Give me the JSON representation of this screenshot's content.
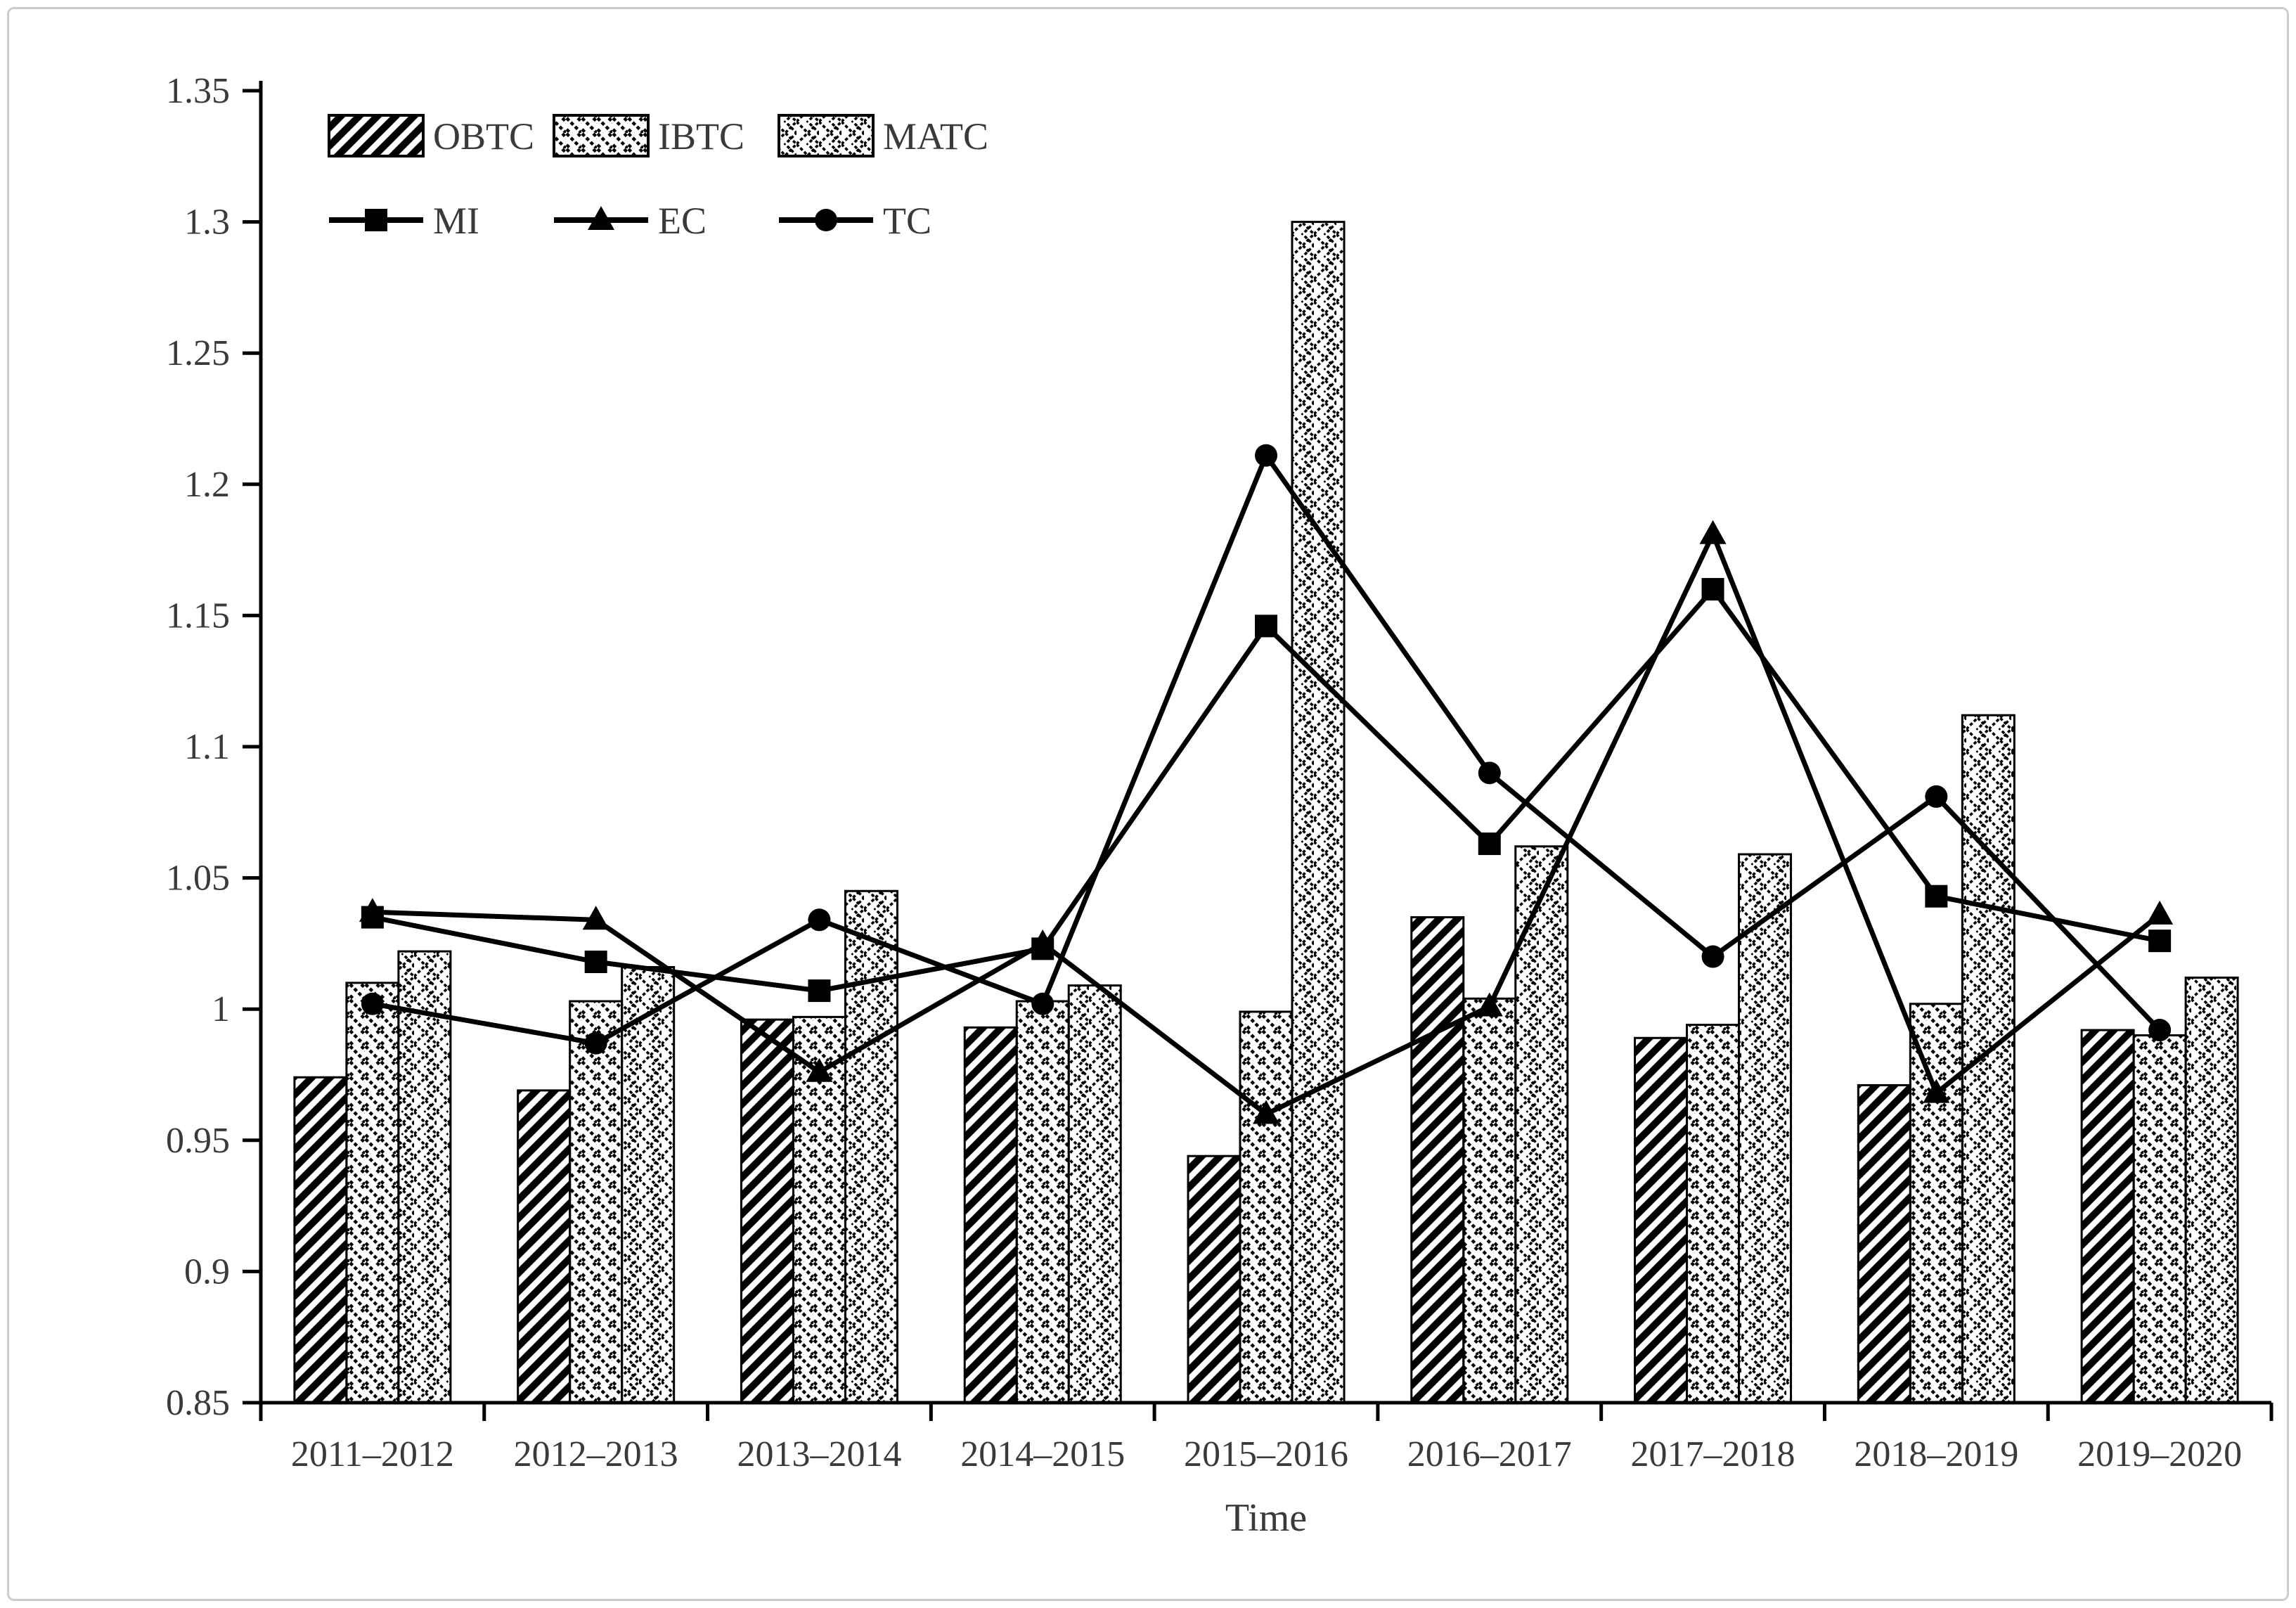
{
  "chart_data": {
    "type": "bar",
    "subtype": "grouped-bars-with-line-overlay",
    "title": "",
    "xlabel": "Time",
    "ylabel": "",
    "ylim": [
      0.85,
      1.35
    ],
    "ytick_step": 0.05,
    "ytick_labels": [
      "0.85",
      "0.9",
      "0.95",
      "1",
      "1.05",
      "1.1",
      "1.15",
      "1.2",
      "1.25",
      "1.3",
      "1.35"
    ],
    "grid": false,
    "legend_position": "top-left-inside",
    "categories": [
      "2011–2012",
      "2012–2013",
      "2013–2014",
      "2014–2015",
      "2015–2016",
      "2016–2017",
      "2017–2018",
      "2018–2019",
      "2019–2020"
    ],
    "bar_series": [
      {
        "name": "OBTC",
        "pattern": "forward-diagonal-hatch",
        "values": [
          0.974,
          0.969,
          0.996,
          0.993,
          0.944,
          1.035,
          0.989,
          0.971,
          0.992
        ]
      },
      {
        "name": "IBTC",
        "pattern": "backward-diagonal-hatch",
        "values": [
          1.01,
          1.003,
          0.997,
          1.003,
          0.999,
          1.004,
          0.994,
          1.002,
          0.99
        ]
      },
      {
        "name": "MATC",
        "pattern": "diamond-crosshatch",
        "values": [
          1.022,
          1.016,
          1.045,
          1.009,
          1.3,
          1.062,
          1.059,
          1.112,
          1.012
        ]
      }
    ],
    "line_series": [
      {
        "name": "MI",
        "marker": "square",
        "values": [
          1.035,
          1.018,
          1.007,
          1.023,
          1.146,
          1.063,
          1.16,
          1.043,
          1.026
        ]
      },
      {
        "name": "EC",
        "marker": "triangle",
        "values": [
          1.037,
          1.034,
          0.976,
          1.025,
          0.96,
          1.001,
          1.181,
          0.968,
          1.036
        ]
      },
      {
        "name": "TC",
        "marker": "circle",
        "values": [
          1.002,
          0.987,
          1.034,
          1.002,
          1.211,
          1.09,
          1.02,
          1.081,
          0.992
        ]
      }
    ],
    "colors": {
      "ink": "#000000",
      "axis_label": "#3a3a3a",
      "frame_border": "#c9ced3",
      "background": "#ffffff"
    }
  }
}
